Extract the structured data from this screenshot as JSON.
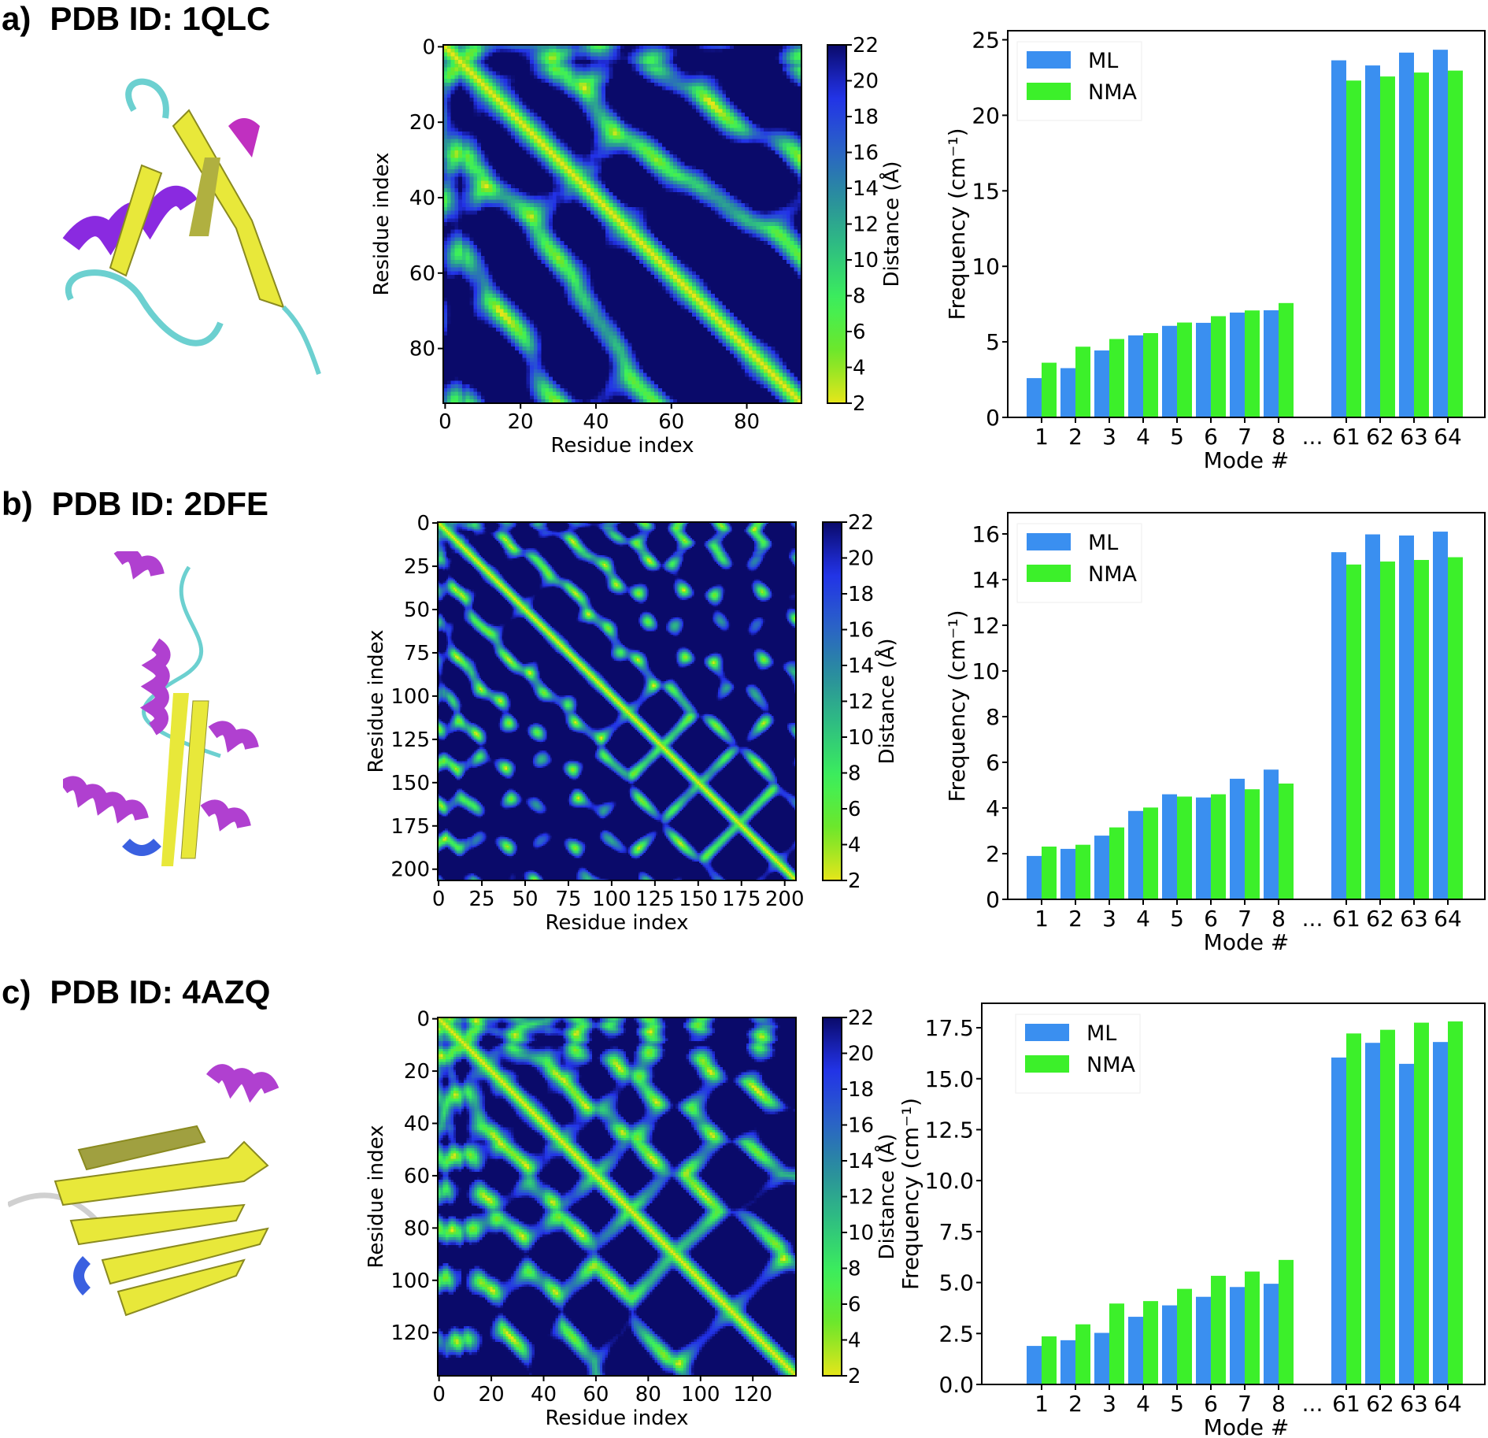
{
  "panels": [
    {
      "letter": "a)",
      "title": "PDB ID: 1QLC",
      "residues": 95,
      "heat_ticks": [
        0,
        20,
        40,
        60,
        80
      ],
      "seed": 7
    },
    {
      "letter": "b)",
      "title": "PDB ID: 2DFE",
      "residues": 207,
      "heat_ticks": [
        0,
        25,
        50,
        75,
        100,
        125,
        150,
        175,
        200
      ],
      "seed": 21
    },
    {
      "letter": "c)",
      "title": "PDB ID: 4AZQ",
      "residues": 137,
      "heat_ticks": [
        0,
        20,
        40,
        60,
        80,
        100,
        120
      ],
      "seed": 33
    }
  ],
  "heatmap": {
    "xlabel": "Residue index",
    "ylabel": "Residue index",
    "colorbar_label": "Distance (Å)",
    "colorbar_ticks": [
      2,
      4,
      6,
      8,
      10,
      12,
      14,
      16,
      18,
      20,
      22
    ],
    "range": [
      2,
      22
    ],
    "colormap": [
      "#e6e61a",
      "#6ee62a",
      "#3cf05a",
      "#2fc080",
      "#2a8f9c",
      "#2a60c8",
      "#2232e8",
      "#0a0a6a"
    ]
  },
  "chart_data": [
    {
      "type": "bar",
      "xlabel": "Mode #",
      "ylabel": "Frequency (cm⁻¹)",
      "categories": [
        "1",
        "2",
        "3",
        "4",
        "5",
        "6",
        "7",
        "8",
        "...",
        "61",
        "62",
        "63",
        "64"
      ],
      "ylim": [
        0,
        25.6
      ],
      "yticks": [
        "0",
        "5",
        "10",
        "15",
        "20",
        "25"
      ],
      "legend": "top-left",
      "grid": false,
      "series": [
        {
          "name": "ML",
          "color": "#3a8ff0",
          "values": [
            2.6,
            3.26,
            4.43,
            5.43,
            6.06,
            6.26,
            6.94,
            7.09,
            null,
            23.64,
            23.3,
            24.15,
            24.34
          ]
        },
        {
          "name": "NMA",
          "color": "#3cf02a",
          "values": [
            3.62,
            4.68,
            5.19,
            5.58,
            6.28,
            6.7,
            7.08,
            7.57,
            null,
            22.3,
            22.57,
            22.83,
            22.96
          ]
        }
      ]
    },
    {
      "type": "bar",
      "xlabel": "Mode #",
      "ylabel": "Frequency (cm⁻¹)",
      "categories": [
        "1",
        "2",
        "3",
        "4",
        "5",
        "6",
        "7",
        "8",
        "...",
        "61",
        "62",
        "63",
        "64"
      ],
      "ylim": [
        0,
        16.93
      ],
      "yticks": [
        "0",
        "2",
        "4",
        "6",
        "8",
        "10",
        "12",
        "14",
        "16"
      ],
      "legend": "top-left",
      "grid": false,
      "series": [
        {
          "name": "ML",
          "color": "#3a8ff0",
          "values": [
            1.9,
            2.21,
            2.79,
            3.87,
            4.6,
            4.46,
            5.28,
            5.68,
            null,
            15.2,
            15.98,
            15.93,
            16.1
          ]
        },
        {
          "name": "NMA",
          "color": "#3cf02a",
          "values": [
            2.31,
            2.39,
            3.15,
            4.02,
            4.5,
            4.6,
            4.82,
            5.07,
            null,
            14.66,
            14.79,
            14.86,
            14.98
          ]
        }
      ]
    },
    {
      "type": "bar",
      "xlabel": "Mode #",
      "ylabel": "Frequency (cm⁻¹)",
      "categories": [
        "1",
        "2",
        "3",
        "4",
        "5",
        "6",
        "7",
        "8",
        "...",
        "61",
        "62",
        "63",
        "64"
      ],
      "ylim": [
        0,
        18.7
      ],
      "yticks": [
        "0.0",
        "2.5",
        "5.0",
        "7.5",
        "10.0",
        "12.5",
        "15.0",
        "17.5"
      ],
      "legend": "top-left",
      "grid": false,
      "series": [
        {
          "name": "ML",
          "color": "#3a8ff0",
          "values": [
            1.89,
            2.17,
            2.53,
            3.32,
            3.88,
            4.3,
            4.78,
            4.94,
            null,
            16.04,
            16.76,
            15.73,
            16.8
          ]
        },
        {
          "name": "NMA",
          "color": "#3cf02a",
          "values": [
            2.36,
            2.95,
            3.97,
            4.09,
            4.69,
            5.33,
            5.54,
            6.11,
            null,
            17.22,
            17.4,
            17.75,
            17.81
          ]
        }
      ]
    }
  ]
}
